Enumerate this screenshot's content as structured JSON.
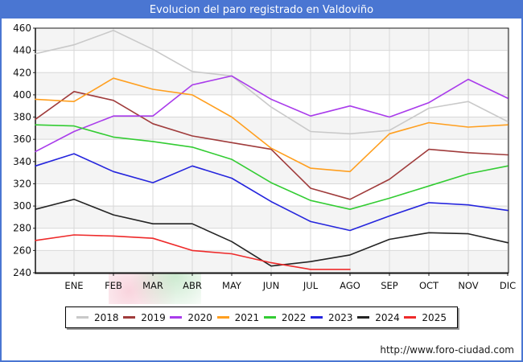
{
  "title_bar": {
    "text": "Evolucion del paro registrado en Valdoviño",
    "bg_color": "#4a76d2",
    "fg_color": "#ffffff"
  },
  "footer": {
    "url": "http://www.foro-ciudad.com"
  },
  "chart_data": {
    "type": "line",
    "title": "Evolucion del paro registrado en Valdoviño",
    "x_categories": [
      "ENE",
      "FEB",
      "MAR",
      "ABR",
      "MAY",
      "JUN",
      "JUL",
      "AGO",
      "SEP",
      "OCT",
      "NOV",
      "DIC"
    ],
    "y_axis": {
      "min": 240,
      "max": 460,
      "step": 20,
      "ticks": [
        460,
        440,
        420,
        400,
        380,
        360,
        340,
        320,
        300,
        280,
        260,
        240
      ]
    },
    "grid": true,
    "legend_position": "bottom",
    "note": "start = value drawn at left axis before ENE; 2025 series ends at AGO",
    "series": [
      {
        "name": "2018",
        "color": "#c9c9c9",
        "start": 437,
        "values": [
          445,
          458,
          441,
          421,
          417,
          389,
          367,
          365,
          368,
          388,
          394,
          376
        ]
      },
      {
        "name": "2019",
        "color": "#a03c3c",
        "start": 378,
        "values": [
          403,
          395,
          374,
          363,
          357,
          351,
          316,
          306,
          324,
          351,
          348,
          346
        ]
      },
      {
        "name": "2020",
        "color": "#a93ceb",
        "start": 349,
        "values": [
          367,
          381,
          381,
          409,
          417,
          396,
          381,
          390,
          380,
          393,
          414,
          397
        ]
      },
      {
        "name": "2021",
        "color": "#ff9f1f",
        "start": 396,
        "values": [
          394,
          415,
          405,
          400,
          380,
          352,
          334,
          331,
          365,
          375,
          371,
          373
        ]
      },
      {
        "name": "2022",
        "color": "#33cc33",
        "start": 373,
        "values": [
          372,
          362,
          358,
          353,
          342,
          321,
          305,
          297,
          307,
          318,
          329,
          336
        ]
      },
      {
        "name": "2023",
        "color": "#2525dd",
        "start": 336,
        "values": [
          347,
          331,
          321,
          336,
          325,
          304,
          286,
          278,
          291,
          303,
          301,
          296
        ]
      },
      {
        "name": "2024",
        "color": "#242424",
        "start": 297,
        "values": [
          306,
          292,
          284,
          284,
          268,
          246,
          250,
          256,
          270,
          276,
          275,
          267
        ]
      },
      {
        "name": "2025",
        "color": "#ee2a2a",
        "start": 269,
        "values": [
          274,
          273,
          271,
          260,
          257,
          249,
          243,
          243,
          null,
          null,
          null,
          null
        ]
      }
    ]
  }
}
